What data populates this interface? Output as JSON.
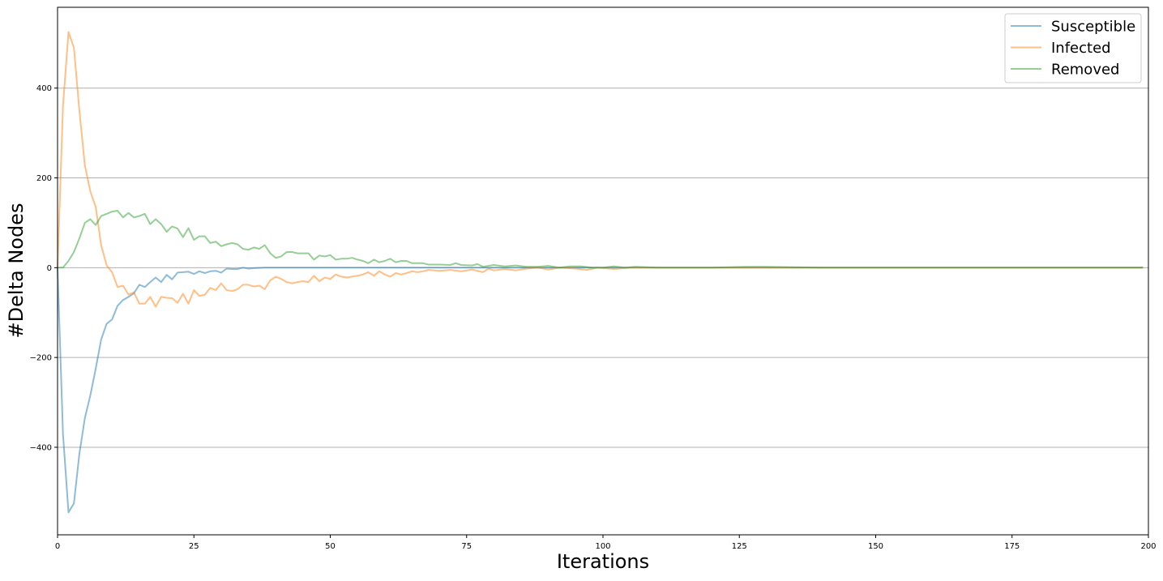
{
  "chart_data": {
    "type": "line",
    "title": "",
    "xlabel": "Iterations",
    "ylabel": "#Delta Nodes",
    "xlim": [
      0,
      200
    ],
    "ylim": [
      -595,
      580
    ],
    "xticks": [
      0,
      25,
      50,
      75,
      100,
      125,
      150,
      175,
      200
    ],
    "yticks": [
      -400,
      -200,
      0,
      200,
      400
    ],
    "grid": "horizontal",
    "legend_position": "top-right",
    "series": [
      {
        "name": "Susceptible",
        "color": "#1f77b4",
        "points": [
          [
            0,
            0
          ],
          [
            1,
            -370
          ],
          [
            2,
            -545
          ],
          [
            3,
            -525
          ],
          [
            4,
            -415
          ],
          [
            5,
            -335
          ],
          [
            6,
            -285
          ],
          [
            7,
            -225
          ],
          [
            8,
            -160
          ],
          [
            9,
            -125
          ],
          [
            10,
            -115
          ],
          [
            11,
            -85
          ],
          [
            12,
            -72
          ],
          [
            13,
            -65
          ],
          [
            14,
            -57
          ],
          [
            15,
            -38
          ],
          [
            16,
            -43
          ],
          [
            17,
            -32
          ],
          [
            18,
            -22
          ],
          [
            19,
            -32
          ],
          [
            20,
            -16
          ],
          [
            21,
            -26
          ],
          [
            22,
            -11
          ],
          [
            23,
            -10
          ],
          [
            24,
            -9
          ],
          [
            25,
            -14
          ],
          [
            26,
            -8
          ],
          [
            27,
            -12
          ],
          [
            28,
            -8
          ],
          [
            29,
            -7
          ],
          [
            30,
            -11
          ],
          [
            31,
            -2
          ],
          [
            32,
            -3
          ],
          [
            33,
            -3
          ],
          [
            34,
            0
          ],
          [
            35,
            -2
          ],
          [
            36,
            -1
          ],
          [
            38,
            0
          ],
          [
            40,
            0
          ],
          [
            45,
            0
          ],
          [
            50,
            0
          ],
          [
            55,
            0
          ],
          [
            60,
            0
          ],
          [
            70,
            0
          ],
          [
            80,
            0
          ],
          [
            90,
            0
          ],
          [
            100,
            0
          ],
          [
            120,
            0
          ],
          [
            140,
            0
          ],
          [
            160,
            0
          ],
          [
            180,
            0
          ],
          [
            199,
            0
          ]
        ]
      },
      {
        "name": "Infected",
        "color": "#ff7f0e",
        "points": [
          [
            0,
            0
          ],
          [
            1,
            360
          ],
          [
            2,
            525
          ],
          [
            3,
            490
          ],
          [
            4,
            350
          ],
          [
            5,
            228
          ],
          [
            6,
            170
          ],
          [
            7,
            135
          ],
          [
            8,
            50
          ],
          [
            9,
            5
          ],
          [
            10,
            -10
          ],
          [
            11,
            -43
          ],
          [
            12,
            -40
          ],
          [
            13,
            -60
          ],
          [
            14,
            -55
          ],
          [
            15,
            -80
          ],
          [
            16,
            -80
          ],
          [
            17,
            -65
          ],
          [
            18,
            -87
          ],
          [
            19,
            -65
          ],
          [
            20,
            -67
          ],
          [
            21,
            -68
          ],
          [
            22,
            -78
          ],
          [
            23,
            -58
          ],
          [
            24,
            -80
          ],
          [
            25,
            -50
          ],
          [
            26,
            -63
          ],
          [
            27,
            -60
          ],
          [
            28,
            -45
          ],
          [
            29,
            -50
          ],
          [
            30,
            -35
          ],
          [
            31,
            -50
          ],
          [
            32,
            -52
          ],
          [
            33,
            -48
          ],
          [
            34,
            -38
          ],
          [
            35,
            -38
          ],
          [
            36,
            -42
          ],
          [
            37,
            -40
          ],
          [
            38,
            -48
          ],
          [
            39,
            -28
          ],
          [
            40,
            -20
          ],
          [
            41,
            -25
          ],
          [
            42,
            -32
          ],
          [
            43,
            -35
          ],
          [
            44,
            -32
          ],
          [
            45,
            -30
          ],
          [
            46,
            -32
          ],
          [
            47,
            -18
          ],
          [
            48,
            -30
          ],
          [
            49,
            -22
          ],
          [
            50,
            -25
          ],
          [
            51,
            -15
          ],
          [
            52,
            -20
          ],
          [
            53,
            -22
          ],
          [
            54,
            -20
          ],
          [
            55,
            -18
          ],
          [
            56,
            -15
          ],
          [
            57,
            -10
          ],
          [
            58,
            -18
          ],
          [
            59,
            -8
          ],
          [
            60,
            -15
          ],
          [
            61,
            -20
          ],
          [
            62,
            -12
          ],
          [
            63,
            -15
          ],
          [
            64,
            -12
          ],
          [
            65,
            -8
          ],
          [
            66,
            -10
          ],
          [
            67,
            -8
          ],
          [
            68,
            -5
          ],
          [
            70,
            -7
          ],
          [
            72,
            -5
          ],
          [
            74,
            -8
          ],
          [
            76,
            -4
          ],
          [
            78,
            -10
          ],
          [
            79,
            -2
          ],
          [
            80,
            -6
          ],
          [
            82,
            -3
          ],
          [
            84,
            -6
          ],
          [
            86,
            -2
          ],
          [
            88,
            0
          ],
          [
            90,
            -4
          ],
          [
            92,
            0
          ],
          [
            95,
            -2
          ],
          [
            97,
            -5
          ],
          [
            99,
            0
          ],
          [
            102,
            -3
          ],
          [
            105,
            0
          ],
          [
            110,
            0
          ],
          [
            120,
            0
          ],
          [
            140,
            0
          ],
          [
            160,
            0
          ],
          [
            180,
            0
          ],
          [
            199,
            0
          ]
        ]
      },
      {
        "name": "Removed",
        "color": "#2ca02c",
        "points": [
          [
            0,
            0
          ],
          [
            1,
            0
          ],
          [
            2,
            15
          ],
          [
            3,
            35
          ],
          [
            4,
            65
          ],
          [
            5,
            100
          ],
          [
            6,
            108
          ],
          [
            7,
            95
          ],
          [
            8,
            115
          ],
          [
            9,
            120
          ],
          [
            10,
            125
          ],
          [
            11,
            127
          ],
          [
            12,
            112
          ],
          [
            13,
            122
          ],
          [
            14,
            112
          ],
          [
            15,
            115
          ],
          [
            16,
            120
          ],
          [
            17,
            97
          ],
          [
            18,
            108
          ],
          [
            19,
            97
          ],
          [
            20,
            80
          ],
          [
            21,
            92
          ],
          [
            22,
            87
          ],
          [
            23,
            68
          ],
          [
            24,
            88
          ],
          [
            25,
            62
          ],
          [
            26,
            70
          ],
          [
            27,
            70
          ],
          [
            28,
            55
          ],
          [
            29,
            58
          ],
          [
            30,
            48
          ],
          [
            31,
            52
          ],
          [
            32,
            55
          ],
          [
            33,
            52
          ],
          [
            34,
            42
          ],
          [
            35,
            40
          ],
          [
            36,
            45
          ],
          [
            37,
            42
          ],
          [
            38,
            50
          ],
          [
            39,
            32
          ],
          [
            40,
            22
          ],
          [
            41,
            25
          ],
          [
            42,
            35
          ],
          [
            43,
            35
          ],
          [
            44,
            32
          ],
          [
            45,
            32
          ],
          [
            46,
            32
          ],
          [
            47,
            18
          ],
          [
            48,
            27
          ],
          [
            49,
            25
          ],
          [
            50,
            28
          ],
          [
            51,
            18
          ],
          [
            52,
            20
          ],
          [
            53,
            20
          ],
          [
            54,
            22
          ],
          [
            55,
            18
          ],
          [
            56,
            15
          ],
          [
            57,
            10
          ],
          [
            58,
            18
          ],
          [
            59,
            12
          ],
          [
            60,
            15
          ],
          [
            61,
            20
          ],
          [
            62,
            12
          ],
          [
            63,
            15
          ],
          [
            64,
            15
          ],
          [
            65,
            10
          ],
          [
            66,
            10
          ],
          [
            67,
            10
          ],
          [
            68,
            7
          ],
          [
            70,
            7
          ],
          [
            72,
            6
          ],
          [
            73,
            10
          ],
          [
            74,
            6
          ],
          [
            76,
            5
          ],
          [
            77,
            8
          ],
          [
            78,
            2
          ],
          [
            80,
            6
          ],
          [
            82,
            3
          ],
          [
            84,
            5
          ],
          [
            86,
            2
          ],
          [
            88,
            2
          ],
          [
            90,
            4
          ],
          [
            92,
            0
          ],
          [
            94,
            3
          ],
          [
            96,
            3
          ],
          [
            98,
            0
          ],
          [
            100,
            0
          ],
          [
            102,
            3
          ],
          [
            104,
            0
          ],
          [
            106,
            2
          ],
          [
            110,
            0
          ],
          [
            120,
            0
          ],
          [
            126,
            2
          ],
          [
            130,
            2
          ],
          [
            140,
            0
          ],
          [
            160,
            0
          ],
          [
            180,
            0
          ],
          [
            199,
            0
          ]
        ]
      }
    ]
  }
}
